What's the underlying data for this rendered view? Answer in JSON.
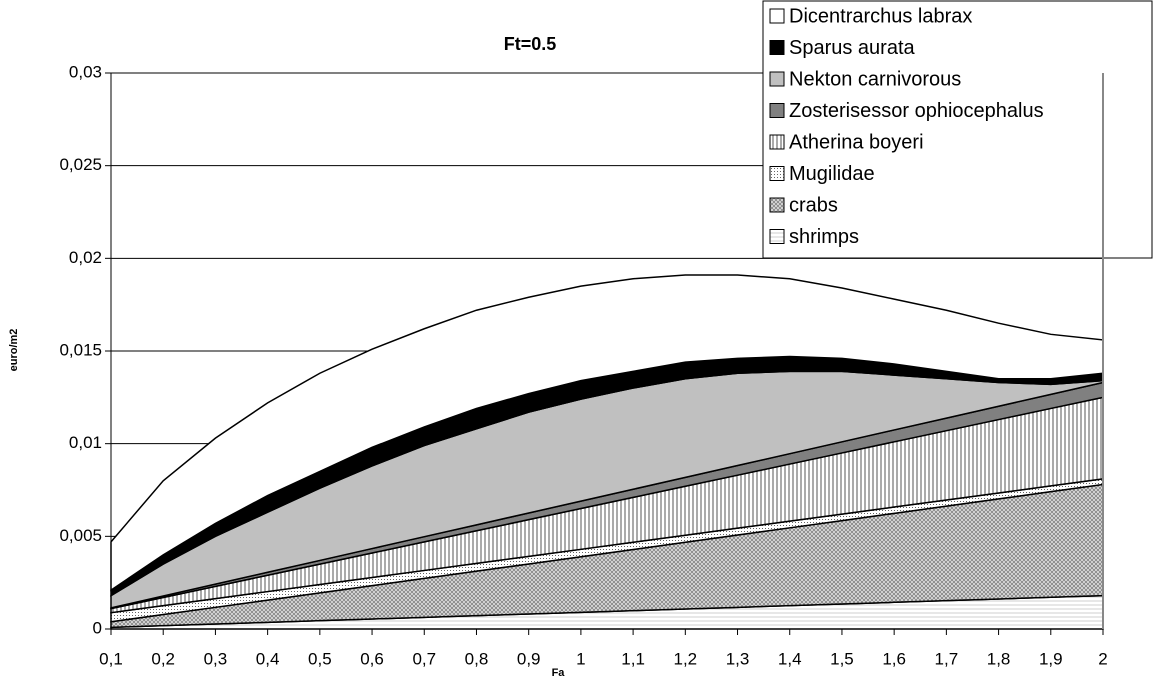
{
  "chart_data": {
    "type": "stacked_area",
    "title": "Ft=0.5",
    "x_label": "Fa",
    "y_label": "euro/m2",
    "categories": [
      "0,1",
      "0,2",
      "0,3",
      "0,4",
      "0,5",
      "0,6",
      "0,7",
      "0,8",
      "0,9",
      "1",
      "1,1",
      "1,2",
      "1,3",
      "1,4",
      "1,5",
      "1,6",
      "1,7",
      "1,8",
      "1,9",
      "2"
    ],
    "ylim": [
      0,
      0.03
    ],
    "yticks": [
      0,
      {
        "value": 0.005,
        "label": "0,005"
      },
      {
        "value": 0.01,
        "label": "0,01"
      },
      {
        "value": 0.015,
        "label": "0,015"
      },
      {
        "value": 0.02,
        "label": "0,02"
      },
      {
        "value": 0.025,
        "label": "0,025"
      },
      {
        "value": 0.03,
        "label": "0,03"
      }
    ],
    "grid": true,
    "legend": "top-right",
    "series": [
      {
        "name": "Dicentrarchus labrax",
        "color": "#ffffff",
        "values": [
          0.0026,
          0.004,
          0.0046,
          0.005,
          0.0053,
          0.0053,
          0.0053,
          0.0053,
          0.0052,
          0.0051,
          0.005,
          0.0047,
          0.0045,
          0.0042,
          0.0038,
          0.0035,
          0.0033,
          0.003,
          0.0024,
          0.0018
        ]
      },
      {
        "name": "Sparus aurata",
        "color": "#000000",
        "values": [
          0.0003,
          0.0005,
          0.0007,
          0.0009,
          0.0009,
          0.001,
          0.001,
          0.0011,
          0.001,
          0.001,
          0.0009,
          0.0009,
          0.0008,
          0.0008,
          0.0007,
          0.0006,
          0.0004,
          0.0002,
          0.0003,
          0.0004
        ]
      },
      {
        "name": "Nekton carnivorous",
        "color": "#c0c0c0",
        "values": [
          0.00066,
          0.00172,
          0.00258,
          0.00324,
          0.0039,
          0.00446,
          0.00492,
          0.00518,
          0.00544,
          0.0055,
          0.00546,
          0.00532,
          0.00498,
          0.00444,
          0.0038,
          0.00296,
          0.00212,
          0.00128,
          0.00054,
          0.0001
        ]
      },
      {
        "name": "Zosterisessor ophiocephalus",
        "color": "#808080",
        "values": [
          4e-05,
          8e-05,
          0.00012,
          0.00016,
          0.0002,
          0.00024,
          0.00028,
          0.00032,
          0.00036,
          0.0004,
          0.00044,
          0.00048,
          0.00052,
          0.00056,
          0.0006,
          0.00064,
          0.00068,
          0.00072,
          0.00076,
          0.0008
        ]
      },
      {
        "name": "Atherina boyeri",
        "color": "#e0e0e0",
        "values": [
          0.00022,
          0.00044,
          0.00066,
          0.00088,
          0.0011,
          0.00132,
          0.00154,
          0.00176,
          0.00198,
          0.0022,
          0.00242,
          0.00264,
          0.00286,
          0.00308,
          0.0033,
          0.00352,
          0.00374,
          0.00396,
          0.00418,
          0.0044
        ]
      },
      {
        "name": "Mugilidae",
        "color": "#d8d8d8",
        "values": [
          0.00049,
          0.00048,
          0.00047,
          0.00046,
          0.00045,
          0.00044,
          0.00043,
          0.00042,
          0.00041,
          0.0004,
          0.00039,
          0.00038,
          0.00037,
          0.00036,
          0.00035,
          0.00034,
          0.00033,
          0.00032,
          0.00031,
          0.0003
        ]
      },
      {
        "name": "crabs",
        "color": "#b8b8b8",
        "values": [
          0.0003,
          0.0006,
          0.0009,
          0.0012,
          0.0015,
          0.0018,
          0.0021,
          0.0024,
          0.0027,
          0.003,
          0.0033,
          0.0036,
          0.0039,
          0.0042,
          0.0045,
          0.0048,
          0.0051,
          0.0054,
          0.0057,
          0.006
        ]
      },
      {
        "name": "shrimps",
        "color": "#f4f4f4",
        "values": [
          9e-05,
          0.00018,
          0.00027,
          0.00036,
          0.00045,
          0.00054,
          0.00063,
          0.00072,
          0.00081,
          0.0009,
          0.00099,
          0.00108,
          0.00117,
          0.00126,
          0.00135,
          0.00144,
          0.00153,
          0.00162,
          0.00171,
          0.0018
        ]
      }
    ]
  }
}
